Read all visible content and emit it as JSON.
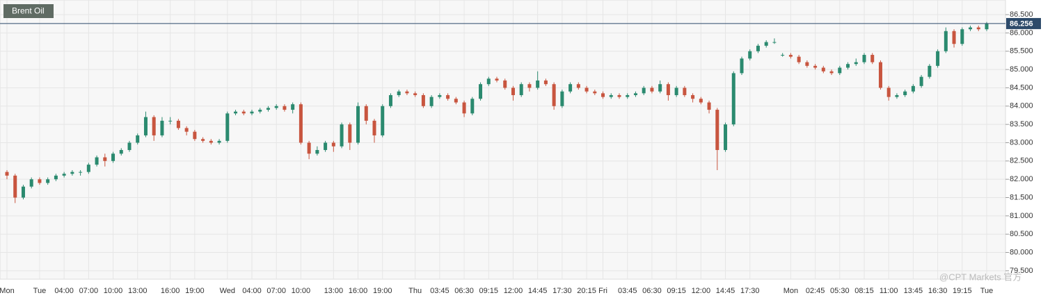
{
  "chart_data": {
    "type": "candlestick",
    "title": "Brent Oil",
    "watermark": "@CPT Markets 官方",
    "categories": [
      "Mon",
      null,
      null,
      null,
      "Tue",
      null,
      null,
      "04:00",
      null,
      null,
      "07:00",
      null,
      null,
      "10:00",
      null,
      null,
      "13:00",
      null,
      null,
      null,
      "16:00",
      null,
      null,
      "19:00",
      null,
      null,
      null,
      "Wed",
      null,
      null,
      "04:00",
      null,
      null,
      "07:00",
      null,
      null,
      "10:00",
      null,
      null,
      null,
      "13:00",
      null,
      null,
      "16:00",
      null,
      null,
      "19:00",
      null,
      null,
      null,
      "Thu",
      null,
      null,
      "03:45",
      null,
      null,
      "06:30",
      null,
      null,
      "09:15",
      null,
      null,
      "12:00",
      null,
      null,
      "14:45",
      null,
      null,
      "17:30",
      null,
      null,
      "20:15",
      null,
      "Fri",
      null,
      null,
      "03:45",
      null,
      null,
      "06:30",
      null,
      null,
      "09:15",
      null,
      null,
      "12:00",
      null,
      null,
      "14:45",
      null,
      null,
      "17:30",
      null,
      null,
      null,
      null,
      "Mon",
      null,
      null,
      "02:45",
      null,
      null,
      "05:30",
      null,
      null,
      "08:15",
      null,
      null,
      "11:00",
      null,
      null,
      "13:45",
      null,
      null,
      "16:30",
      null,
      null,
      "19:15",
      null,
      null,
      "Tue"
    ],
    "open": [
      82.2,
      82.1,
      81.5,
      81.8,
      82.0,
      81.9,
      82.0,
      82.1,
      82.15,
      82.2,
      82.2,
      82.4,
      82.6,
      82.5,
      82.7,
      82.8,
      83.0,
      83.2,
      83.7,
      83.2,
      83.6,
      83.6,
      83.4,
      83.3,
      83.1,
      83.05,
      83.0,
      83.05,
      83.8,
      83.85,
      83.8,
      83.85,
      83.9,
      83.95,
      84.0,
      83.9,
      84.05,
      83.0,
      82.7,
      82.8,
      83.0,
      82.9,
      83.5,
      83.0,
      84.0,
      83.6,
      83.2,
      84.0,
      84.3,
      84.4,
      84.35,
      84.3,
      84.0,
      84.25,
      84.3,
      84.2,
      84.1,
      83.8,
      84.2,
      84.6,
      84.75,
      84.7,
      84.5,
      84.3,
      84.6,
      84.5,
      84.7,
      84.6,
      84.0,
      84.4,
      84.6,
      84.5,
      84.4,
      84.35,
      84.25,
      84.3,
      84.25,
      84.3,
      84.35,
      84.5,
      84.4,
      84.6,
      84.3,
      84.5,
      84.3,
      84.2,
      84.1,
      83.9,
      82.8,
      83.5,
      84.9,
      85.3,
      85.5,
      85.65,
      85.75,
      85.4,
      85.4,
      85.35,
      85.2,
      85.1,
      85.05,
      84.95,
      84.9,
      85.05,
      85.15,
      85.2,
      85.4,
      85.2,
      84.5,
      84.25,
      84.3,
      84.4,
      84.55,
      84.8,
      85.1,
      85.5,
      86.05,
      85.7,
      86.1,
      86.15,
      86.1
    ],
    "high": [
      82.25,
      82.15,
      81.85,
      82.05,
      82.05,
      82.05,
      82.15,
      82.2,
      82.25,
      82.25,
      82.45,
      82.65,
      82.7,
      82.75,
      82.85,
      83.05,
      83.25,
      83.85,
      83.75,
      83.7,
      83.7,
      83.65,
      83.45,
      83.35,
      83.15,
      83.1,
      83.1,
      83.85,
      83.9,
      83.9,
      83.9,
      83.95,
      84.0,
      84.05,
      84.05,
      84.1,
      84.1,
      83.05,
      82.9,
      83.05,
      83.05,
      83.55,
      83.55,
      84.1,
      84.05,
      83.65,
      84.05,
      84.35,
      84.45,
      84.45,
      84.4,
      84.35,
      84.3,
      84.35,
      84.35,
      84.25,
      84.15,
      84.25,
      84.65,
      84.8,
      84.8,
      84.75,
      84.55,
      84.65,
      84.65,
      84.95,
      84.75,
      84.65,
      84.45,
      84.65,
      84.65,
      84.55,
      84.45,
      84.4,
      84.35,
      84.35,
      84.35,
      84.4,
      84.55,
      84.55,
      84.7,
      84.65,
      84.55,
      84.55,
      84.35,
      84.25,
      84.15,
      83.95,
      83.55,
      84.95,
      85.35,
      85.55,
      85.7,
      85.8,
      85.85,
      85.45,
      85.45,
      85.4,
      85.25,
      85.15,
      85.1,
      85.0,
      85.1,
      85.2,
      85.3,
      85.45,
      85.45,
      85.25,
      84.55,
      84.35,
      84.45,
      84.6,
      84.85,
      85.15,
      85.55,
      86.15,
      86.1,
      86.15,
      86.2,
      86.2,
      86.3
    ],
    "low": [
      82.0,
      81.35,
      81.45,
      81.75,
      81.85,
      81.85,
      81.95,
      82.05,
      82.1,
      82.1,
      82.15,
      82.35,
      82.35,
      82.45,
      82.65,
      82.75,
      82.95,
      83.15,
      83.05,
      83.15,
      83.5,
      83.35,
      83.2,
      83.05,
      83.0,
      82.95,
      82.95,
      83.0,
      83.75,
      83.75,
      83.75,
      83.8,
      83.85,
      83.9,
      83.85,
      83.8,
      82.95,
      82.55,
      82.65,
      82.75,
      82.75,
      82.85,
      82.8,
      82.95,
      83.5,
      83.0,
      83.15,
      83.95,
      84.25,
      84.3,
      84.25,
      83.95,
      83.95,
      84.2,
      84.15,
      84.05,
      83.7,
      83.75,
      84.15,
      84.55,
      84.65,
      84.45,
      84.15,
      84.25,
      84.4,
      84.45,
      84.55,
      83.9,
      83.95,
      84.35,
      84.45,
      84.35,
      84.3,
      84.2,
      84.2,
      84.2,
      84.2,
      84.25,
      84.3,
      84.35,
      84.35,
      84.15,
      84.25,
      84.25,
      84.1,
      84.05,
      83.8,
      82.25,
      82.75,
      83.45,
      84.85,
      85.25,
      85.45,
      85.6,
      85.7,
      85.35,
      85.3,
      85.15,
      85.05,
      85.0,
      84.9,
      84.85,
      84.85,
      85.0,
      85.1,
      85.15,
      85.15,
      84.45,
      84.15,
      84.2,
      84.25,
      84.35,
      84.5,
      84.75,
      85.05,
      85.45,
      85.6,
      85.65,
      86.05,
      86.05,
      86.05
    ],
    "close": [
      82.1,
      81.5,
      81.8,
      82.0,
      81.9,
      82.0,
      82.1,
      82.15,
      82.2,
      82.2,
      82.4,
      82.6,
      82.5,
      82.7,
      82.8,
      83.0,
      83.2,
      83.7,
      83.2,
      83.6,
      83.6,
      83.4,
      83.3,
      83.1,
      83.05,
      83.0,
      83.05,
      83.8,
      83.85,
      83.8,
      83.85,
      83.9,
      83.95,
      84.0,
      83.9,
      84.05,
      83.0,
      82.7,
      82.8,
      83.0,
      82.9,
      83.5,
      83.0,
      84.0,
      83.6,
      83.2,
      84.0,
      84.3,
      84.4,
      84.35,
      84.3,
      84.0,
      84.25,
      84.3,
      84.2,
      84.1,
      83.8,
      84.2,
      84.6,
      84.75,
      84.7,
      84.5,
      84.3,
      84.6,
      84.5,
      84.7,
      84.6,
      84.0,
      84.4,
      84.6,
      84.5,
      84.4,
      84.35,
      84.25,
      84.3,
      84.25,
      84.3,
      84.35,
      84.5,
      84.4,
      84.6,
      84.3,
      84.5,
      84.3,
      84.2,
      84.1,
      83.9,
      82.8,
      83.5,
      84.9,
      85.3,
      85.5,
      85.65,
      85.75,
      85.75,
      85.4,
      85.35,
      85.2,
      85.1,
      85.05,
      84.95,
      84.9,
      85.05,
      85.15,
      85.2,
      85.4,
      85.2,
      84.5,
      84.25,
      84.3,
      84.4,
      84.55,
      84.8,
      85.1,
      85.5,
      86.05,
      85.7,
      86.1,
      86.15,
      86.1,
      86.25
    ],
    "up_color": "#2b8a6f",
    "down_color": "#c8553f",
    "last_price": 86.256,
    "ylim": [
      79.27,
      86.9
    ],
    "yticks": [
      {
        "value": 79.5,
        "label": "79.500"
      },
      {
        "value": 80,
        "label": "80.000"
      },
      {
        "value": 80.5,
        "label": "80.500"
      },
      {
        "value": 81,
        "label": "81.000"
      },
      {
        "value": 81.5,
        "label": "81.500"
      },
      {
        "value": 82,
        "label": "82.000"
      },
      {
        "value": 82.5,
        "label": "82.500"
      },
      {
        "value": 83,
        "label": "83.000"
      },
      {
        "value": 83.5,
        "label": "83.500"
      },
      {
        "value": 84,
        "label": "84.000"
      },
      {
        "value": 84.5,
        "label": "84.500"
      },
      {
        "value": 85,
        "label": "85.000"
      },
      {
        "value": 85.5,
        "label": "85.500"
      },
      {
        "value": 86,
        "label": "86.000"
      },
      {
        "value": 86.5,
        "label": "86.500"
      }
    ],
    "grid": true
  }
}
